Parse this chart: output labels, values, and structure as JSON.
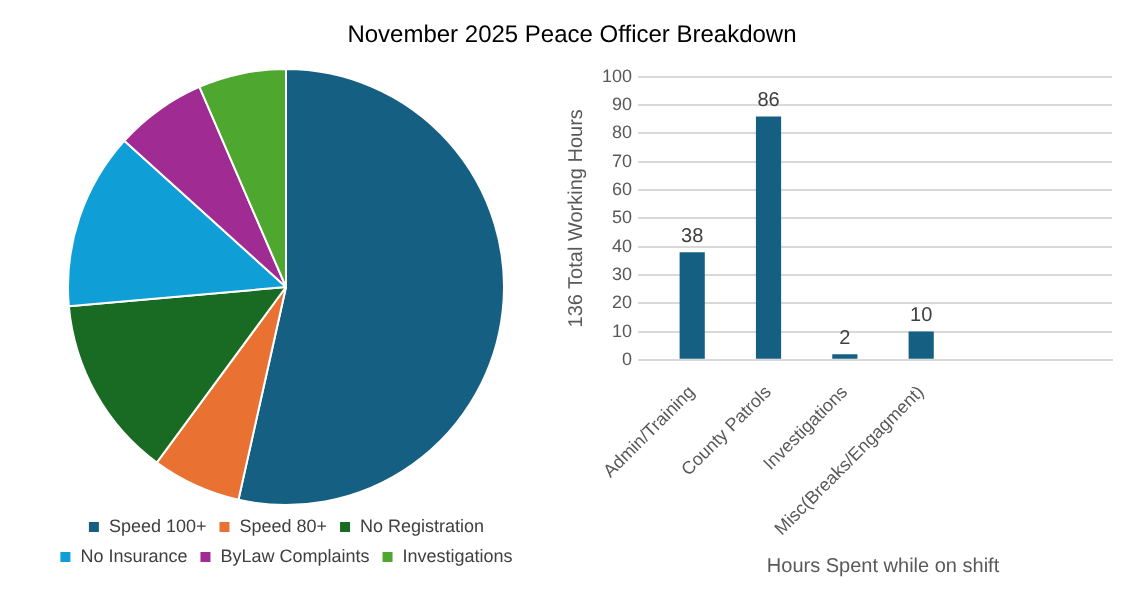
{
  "chart_data": [
    {
      "type": "pie",
      "title": "November 2025 Peace Officer Breakdown",
      "categories": [
        "Speed 100+",
        "Speed 80+",
        "No Registration",
        "No Insurance",
        "ByLaw Complaints",
        "Investigations"
      ],
      "values": [
        53.5,
        6.6,
        13.5,
        13.1,
        6.8,
        6.5
      ],
      "colors": [
        "#156082",
        "#e97132",
        "#196b24",
        "#0f9ed5",
        "#a02b93",
        "#4ea72e"
      ],
      "legend": "bottom"
    },
    {
      "type": "bar",
      "categories": [
        "Admin/Training",
        "County Patrols",
        "Investigations",
        "Misc(Breaks/Engagment)",
        null,
        null
      ],
      "values": [
        38,
        86,
        2,
        10,
        null,
        null
      ],
      "color": "#156082",
      "xlabel": "Hours Spent while on shift",
      "ylabel": "136 Total Working Hours",
      "ylim": [
        0,
        100
      ],
      "yticks": [
        0,
        10,
        20,
        30,
        40,
        50,
        60,
        70,
        80,
        90,
        100
      ],
      "grid": "y",
      "data_labels": true
    }
  ]
}
